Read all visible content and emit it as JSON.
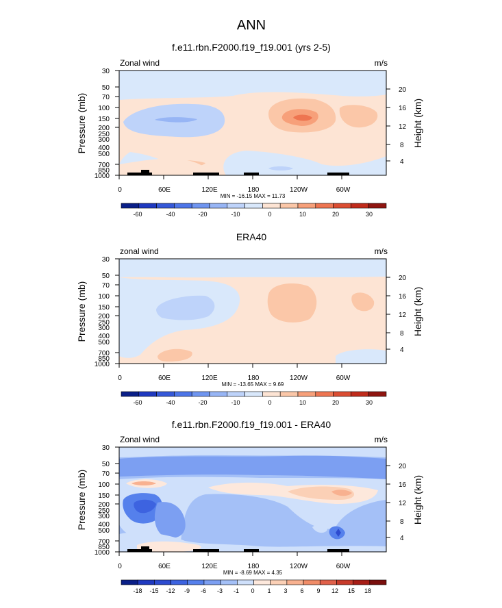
{
  "figure": {
    "title": "ANN"
  },
  "chart_data": [
    {
      "type": "heatmap",
      "title": "f.e11.rbn.F2000.f19_f19.001 (yrs 2-5)",
      "left_label": "Zonal wind",
      "right_label": "m/s",
      "ylabel": "Pressure (mb)",
      "ylabel_right": "Height (km)",
      "pressure_ticks": [
        "30",
        "50",
        "70",
        "100",
        "150",
        "200",
        "250",
        "300",
        "400",
        "500",
        "700",
        "850",
        "1000"
      ],
      "height_ticks": [
        "20",
        "16",
        "12",
        "8",
        "4"
      ],
      "x_ticks": [
        "0",
        "60E",
        "120E",
        "180",
        "120W",
        "60W"
      ],
      "stats": "MIN = -16.15  MAX =  11.73",
      "colorbar_labels": [
        "-60",
        "-40",
        "-20",
        "-10",
        "0",
        "10",
        "20",
        "30"
      ],
      "colorbar_colors": [
        "#0a1f88",
        "#1f39c0",
        "#3558d8",
        "#4d75e8",
        "#6f95f0",
        "#97b5f5",
        "#bed3fa",
        "#d9e8fb",
        "#fde4d4",
        "#fbc7a8",
        "#f7a07a",
        "#ee7551",
        "#db4d32",
        "#c02b1b",
        "#8f1510"
      ]
    },
    {
      "type": "heatmap",
      "title": "ERA40",
      "left_label": "zonal wind",
      "right_label": "m/s",
      "ylabel": "Pressure (mb)",
      "ylabel_right": "Height (km)",
      "pressure_ticks": [
        "30",
        "50",
        "70",
        "100",
        "150",
        "200",
        "250",
        "300",
        "400",
        "500",
        "700",
        "850",
        "1000"
      ],
      "height_ticks": [
        "20",
        "16",
        "12",
        "8",
        "4"
      ],
      "x_ticks": [
        "0",
        "60E",
        "120E",
        "180",
        "120W",
        "60W"
      ],
      "stats": "MIN = -13.65  MAX =   9.69",
      "colorbar_labels": [
        "-60",
        "-40",
        "-20",
        "-10",
        "0",
        "10",
        "20",
        "30"
      ],
      "colorbar_colors": [
        "#0a1f88",
        "#1f39c0",
        "#3558d8",
        "#4d75e8",
        "#6f95f0",
        "#97b5f5",
        "#bed3fa",
        "#d9e8fb",
        "#fde4d4",
        "#fbc7a8",
        "#f7a07a",
        "#ee7551",
        "#db4d32",
        "#c02b1b",
        "#8f1510"
      ]
    },
    {
      "type": "heatmap",
      "title": "f.e11.rbn.F2000.f19_f19.001 - ERA40",
      "left_label": "Zonal wind",
      "right_label": "m/s",
      "ylabel": "Pressure (mb)",
      "ylabel_right": "Height (km)",
      "pressure_ticks": [
        "30",
        "50",
        "70",
        "100",
        "150",
        "200",
        "250",
        "300",
        "400",
        "500",
        "700",
        "850",
        "1000"
      ],
      "height_ticks": [
        "20",
        "16",
        "12",
        "8",
        "4"
      ],
      "x_ticks": [
        "0",
        "60E",
        "120E",
        "180",
        "120W",
        "60W"
      ],
      "stats": "MIN =  -8.69  MAX =   4.35",
      "colorbar_labels": [
        "-18",
        "-15",
        "-12",
        "-9",
        "-6",
        "-3",
        "-1",
        "0",
        "1",
        "3",
        "6",
        "9",
        "12",
        "15",
        "18"
      ],
      "colorbar_colors": [
        "#0a1f88",
        "#1f39c0",
        "#2d4bd0",
        "#3d63e0",
        "#5580ec",
        "#7c9ff2",
        "#a4c0f7",
        "#cfe0fb",
        "#fde8dc",
        "#fbd0b6",
        "#f8b190",
        "#f08c68",
        "#e0604a",
        "#c73a2a",
        "#a71d16",
        "#7a0f0d"
      ]
    }
  ]
}
